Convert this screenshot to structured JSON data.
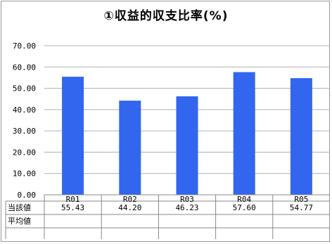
{
  "chart_data": {
    "type": "bar",
    "title": "①収益的収支比率(%)",
    "categories": [
      "R01",
      "R02",
      "R03",
      "R04",
      "R05"
    ],
    "series": [
      {
        "values": [
          55.43,
          44.2,
          46.23,
          57.6,
          54.77
        ],
        "color": "#3366ee"
      }
    ],
    "y_ticks": [
      "0.00",
      "10.00",
      "20.00",
      "30.00",
      "40.00",
      "50.00",
      "60.00",
      "70.00"
    ],
    "ylim": [
      0,
      70
    ],
    "grid": true,
    "legend": "none",
    "table": {
      "rows": [
        {
          "label": "当該値",
          "values": [
            "55.43",
            "44.20",
            "46.23",
            "57.60",
            "54.77"
          ]
        },
        {
          "label": "平均値",
          "values": [
            "",
            "",
            "",
            "",
            ""
          ]
        }
      ]
    }
  }
}
